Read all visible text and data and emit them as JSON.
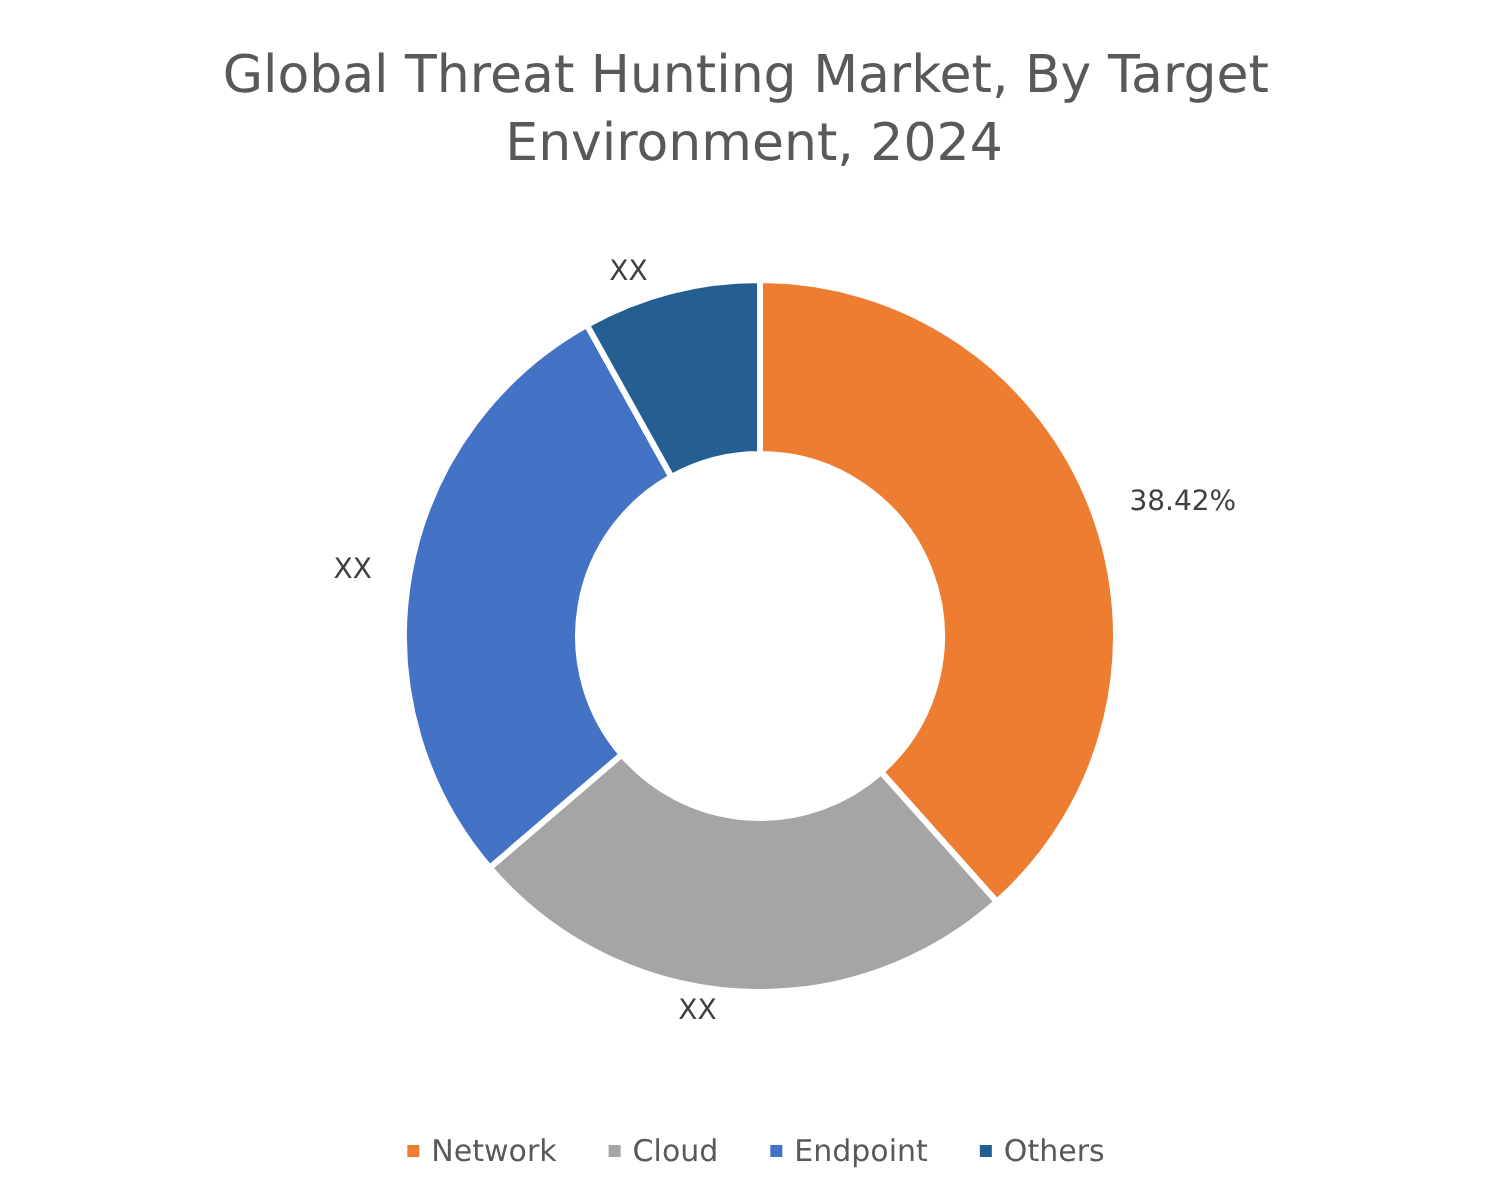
{
  "chart_data": {
    "type": "donut",
    "title": "Global Threat Hunting Market, By Target Environment, 2024",
    "categories": [
      "Network",
      "Cloud",
      "Endpoint",
      "Others"
    ],
    "values": [
      38.42,
      25.3,
      28.2,
      8.08
    ],
    "colors": [
      "#ed7d31",
      "#a5a5a5",
      "#4472c4",
      "#255e91"
    ],
    "value_labels": [
      "38.42%",
      "XX",
      "XX",
      "XX"
    ],
    "legend": "bottom"
  }
}
